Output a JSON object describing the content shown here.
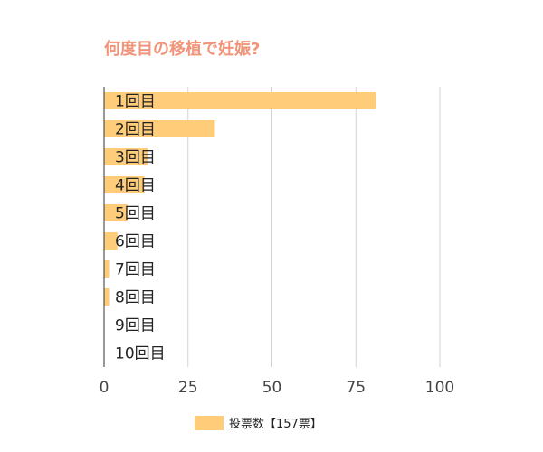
{
  "chart_data": {
    "type": "bar",
    "orientation": "horizontal",
    "title": "何度目の移植で妊娠?",
    "categories": [
      "1回目",
      "2回目",
      "3回目",
      "4回目",
      "5回目",
      "6回目",
      "7回目",
      "8回目",
      "9回目",
      "10回目"
    ],
    "series": [
      {
        "name": "投票数【157票】",
        "values": [
          81,
          33,
          13,
          12,
          7,
          4,
          1.5,
          1.5,
          0,
          0
        ]
      }
    ],
    "xlim": [
      0,
      100
    ],
    "x_ticks": [
      0,
      25,
      50,
      75,
      100
    ],
    "grid": true,
    "legend": "bottom"
  },
  "colors": {
    "bar": "#ffcd7a",
    "title": "#f0957a",
    "grid": "#d3d3d3",
    "axis": "#333333"
  }
}
